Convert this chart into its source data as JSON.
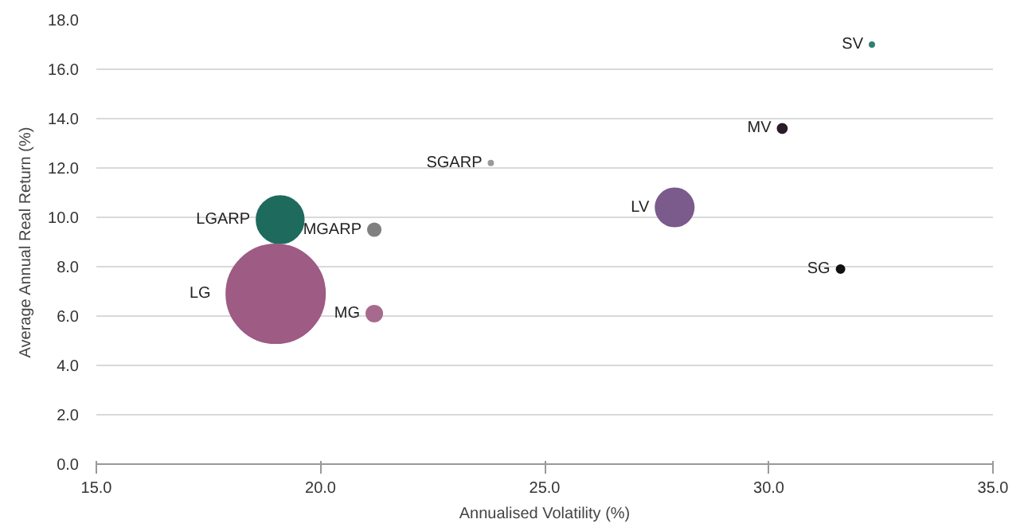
{
  "chart_data": {
    "type": "bubble",
    "xlabel": "Annualised Volatility (%)",
    "ylabel": "Average Annual Real Return (%)",
    "x": [
      32.3,
      30.3,
      31.6,
      27.9,
      23.8,
      21.2,
      19.1,
      19.0,
      21.2
    ],
    "values": [
      17.0,
      13.6,
      7.9,
      10.4,
      12.2,
      9.5,
      9.9,
      6.9,
      6.1
    ],
    "sizes": [
      0.0023,
      0.009,
      0.0065,
      0.15,
      0.0023,
      0.017,
      0.23,
      1,
      0.026
    ],
    "colors": [
      "#2e7f73",
      "#2a1a2a",
      "#111111",
      "#7b5a8c",
      "#999999",
      "#808080",
      "#1e6b5e",
      "#9e5b84",
      "#a8698f"
    ],
    "annotations": [
      {
        "text": "SV",
        "x": 32.3,
        "y": 17.0
      },
      {
        "text": "MV",
        "x": 30.3,
        "y": 13.6
      },
      {
        "text": "SG",
        "x": 31.6,
        "y": 7.9
      },
      {
        "text": "LV",
        "x": 27.9,
        "y": 10.4
      },
      {
        "text": "SGARP",
        "x": 23.8,
        "y": 12.2
      },
      {
        "text": "MGARP",
        "x": 21.2,
        "y": 9.5
      },
      {
        "text": "LGARP",
        "x": 19.1,
        "y": 9.9
      },
      {
        "text": "LG",
        "x": 17.8,
        "y": 6.9
      },
      {
        "text": "MG",
        "x": 21.2,
        "y": 6.1
      }
    ],
    "xlim": [
      15,
      35
    ],
    "ylim": [
      0,
      18
    ],
    "xticks": [
      {
        "value": 15,
        "label": "15.0"
      },
      {
        "value": 20,
        "label": "20.0"
      },
      {
        "value": 25,
        "label": "25.0"
      },
      {
        "value": 30,
        "label": "30.0"
      },
      {
        "value": 35,
        "label": "35.0"
      }
    ],
    "yticks": [
      {
        "value": 0,
        "label": "0.0"
      },
      {
        "value": 2,
        "label": "2.0"
      },
      {
        "value": 4,
        "label": "4.0"
      },
      {
        "value": 6,
        "label": "6.0"
      },
      {
        "value": 8,
        "label": "8.0"
      },
      {
        "value": 10,
        "label": "10.0"
      },
      {
        "value": 12,
        "label": "12.0"
      },
      {
        "value": 14,
        "label": "14.0"
      },
      {
        "value": 16,
        "label": "16.0"
      },
      {
        "value": 18,
        "label": "18.0"
      }
    ],
    "grid": "y"
  }
}
